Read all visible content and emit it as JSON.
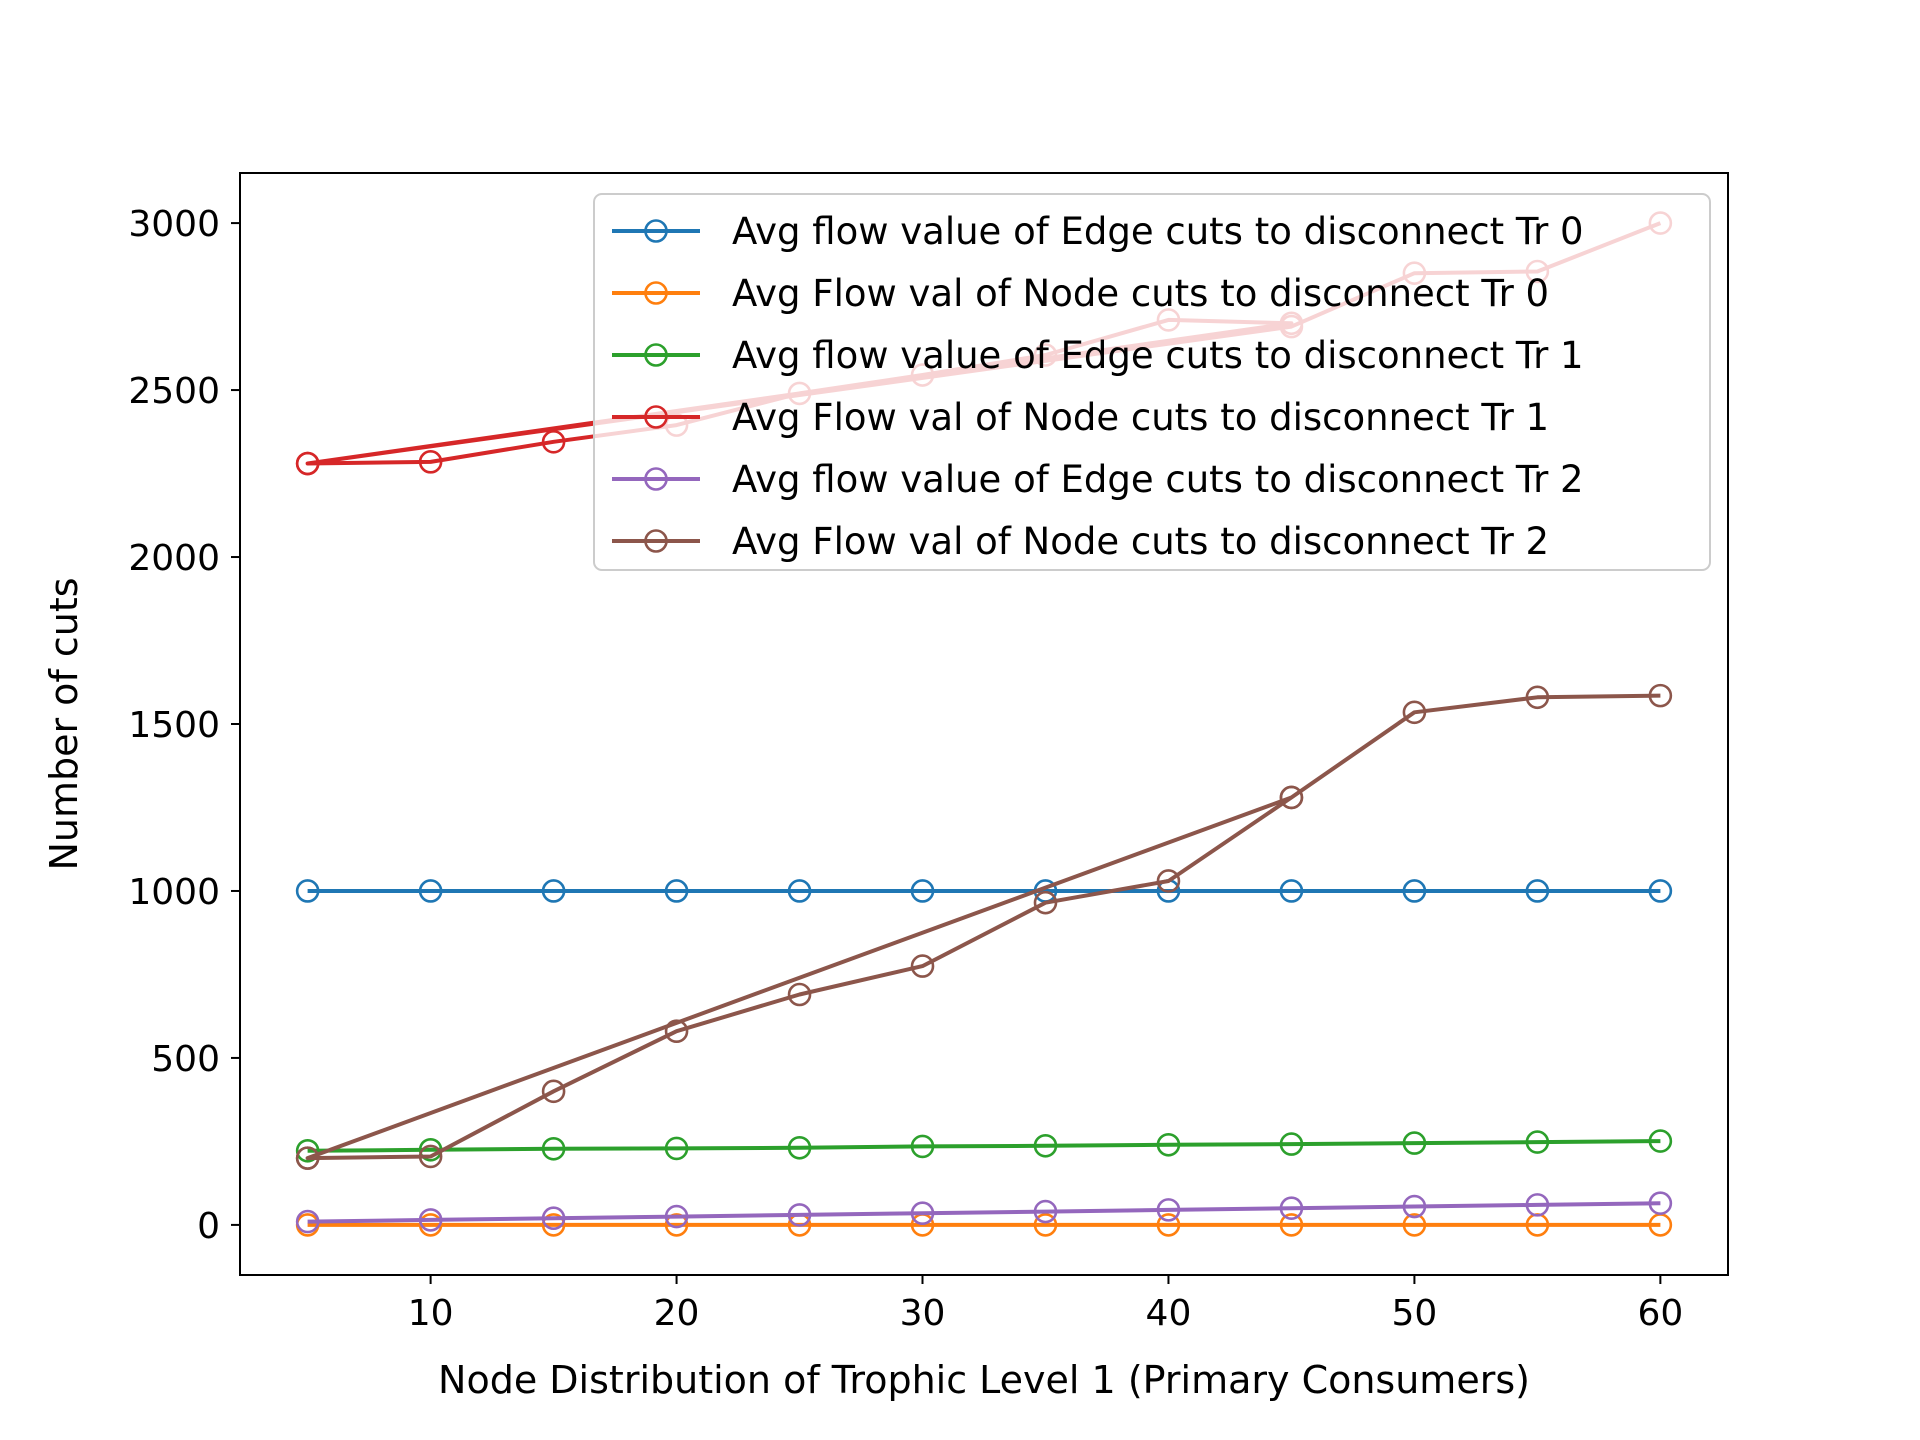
{
  "chart_data": {
    "type": "line",
    "xlabel": "Node Distribution of Trophic Level 1 (Primary Consumers)",
    "ylabel": "Number of cuts",
    "xlim": [
      2.25,
      62.75
    ],
    "ylim": [
      -150,
      3150
    ],
    "xticks": [
      10,
      20,
      30,
      40,
      50,
      60
    ],
    "yticks": [
      0,
      500,
      1000,
      1500,
      2000,
      2500,
      3000
    ],
    "grid": false,
    "legend": "top-right",
    "series": [
      {
        "name": "Avg flow value of Edge cuts to disconnect Tr 0",
        "color": "#1f77b4",
        "x": [
          5,
          10,
          15,
          20,
          25,
          30,
          35,
          40,
          45,
          50,
          55,
          60
        ],
        "y": [
          1000,
          1000,
          1000,
          1000,
          1000,
          1000,
          1000,
          1000,
          1000,
          1000,
          1000,
          1000
        ]
      },
      {
        "name": "Avg Flow val of Node cuts to disconnect Tr 0",
        "color": "#ff7f0e",
        "x": [
          5,
          10,
          15,
          20,
          25,
          30,
          35,
          40,
          45,
          50,
          55,
          60
        ],
        "y": [
          0,
          0,
          0,
          0,
          0,
          0,
          0,
          0,
          0,
          0,
          0,
          0
        ]
      },
      {
        "name": "Avg flow value of Edge cuts to disconnect Tr 1",
        "color": "#2ca02c",
        "x": [
          5,
          10,
          15,
          20,
          25,
          30,
          35,
          40,
          45,
          50,
          55,
          60
        ],
        "y": [
          222,
          225,
          228,
          229,
          231,
          235,
          237,
          240,
          242,
          245,
          248,
          251
        ]
      },
      {
        "name": "Avg Flow val of Node cuts to disconnect Tr 1",
        "color": "#d62728",
        "x": [
          5,
          10,
          15,
          20,
          25,
          30,
          35,
          40,
          45,
          5,
          45,
          50,
          55,
          60
        ],
        "y": [
          2280,
          2285,
          2345,
          2395,
          2490,
          2545,
          2605,
          2710,
          2700,
          2280,
          2690,
          2850,
          2855,
          3000
        ]
      },
      {
        "name": "Avg flow value of Edge cuts to disconnect Tr 2",
        "color": "#9467bd",
        "x": [
          5,
          10,
          15,
          20,
          25,
          30,
          35,
          40,
          45,
          50,
          55,
          60
        ],
        "y": [
          10,
          15,
          20,
          25,
          30,
          35,
          40,
          45,
          50,
          55,
          60,
          65
        ]
      },
      {
        "name": "Avg Flow val of Node cuts to disconnect Tr 2",
        "color": "#8c564b",
        "x": [
          5,
          10,
          15,
          20,
          25,
          30,
          35,
          40,
          45,
          5,
          45,
          50,
          55,
          60
        ],
        "y": [
          200,
          205,
          400,
          580,
          690,
          775,
          965,
          1030,
          1280,
          200,
          1280,
          1535,
          1580,
          1585
        ]
      }
    ]
  }
}
